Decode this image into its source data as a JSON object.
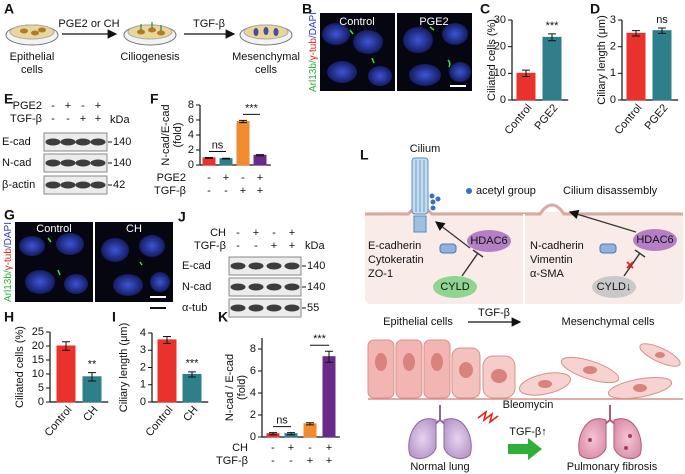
{
  "panel_a": {
    "letter": "A",
    "start": [
      "Epithelial",
      "cells"
    ],
    "step1": "PGE2 or CH",
    "middle": "Ciliogenesis",
    "step2": "TGF-β",
    "end": [
      "Mesenchymal",
      "cells"
    ]
  },
  "panel_b": {
    "letter": "B",
    "stain": [
      "Arl13b/",
      "γ-tub",
      "/DAPI"
    ],
    "images": [
      "Control",
      "PGE2"
    ]
  },
  "panel_e": {
    "letter": "E",
    "unit": "kDa",
    "rows": [
      {
        "name": "PGE2",
        "signs": [
          "-",
          "+",
          "-",
          "+"
        ]
      },
      {
        "name": "TGF-β",
        "signs": [
          "-",
          "-",
          "+",
          "+"
        ]
      }
    ],
    "bands": [
      {
        "name": "E-cad",
        "kda": 140
      },
      {
        "name": "N-cad",
        "kda": 140
      },
      {
        "name": "β-actin",
        "kda": 42
      }
    ]
  },
  "panel_g": {
    "letter": "G",
    "stain": [
      "Arl13b/",
      "γ-tub",
      "/DAPI"
    ],
    "images": [
      "Control",
      "CH"
    ]
  },
  "panel_j": {
    "letter": "J",
    "unit": "kDa",
    "rows": [
      {
        "name": "CH",
        "signs": [
          "-",
          "+",
          "-",
          "+"
        ]
      },
      {
        "name": "TGF-β",
        "signs": [
          "-",
          "-",
          "+",
          "+"
        ]
      }
    ],
    "bands": [
      {
        "name": "E-cad",
        "kda": 140
      },
      {
        "name": "N-cad",
        "kda": 140
      },
      {
        "name": "α-tub",
        "kda": 55
      }
    ]
  },
  "panel_l": {
    "letter": "L",
    "cilium": "Cilium",
    "acetyl": "acetyl group",
    "disassembly": "Cilium disassembly",
    "hdac_left": "HDAC6",
    "hdac_right": "HDAC6",
    "cyld_left": "CYLD",
    "cyld_right": "CYLD↓",
    "epithelial_markers": [
      "E-cadherin",
      "Cytokeratin",
      "ZO-1"
    ],
    "mesenchymal_markers": [
      "N-cadherin",
      "Vimentin",
      "α-SMA"
    ],
    "epithelial": "Epithelial cells",
    "tgf": "TGF-β",
    "mesenchymal": "Mesenchymal cells",
    "bleomycin": "Bleomycin",
    "tgf_up": "TGF-β↑",
    "normal": "Normal lung",
    "fibrosis": "Pulmonary fibrosis"
  },
  "chart_data": [
    {
      "type": "bar",
      "panel": "C",
      "ylabel": "Ciliated cells (%)",
      "categories": [
        "Control",
        "PGE2"
      ],
      "values": [
        10,
        23.5
      ],
      "errors": [
        1.2,
        1.3
      ],
      "colors": [
        "#e8322b",
        "#2f7f8a"
      ],
      "ylim": [
        0,
        30
      ],
      "yticks": [
        0,
        10,
        20,
        30
      ],
      "annotations": [
        "***"
      ]
    },
    {
      "type": "bar",
      "panel": "D",
      "ylabel": "Ciliary length (μm)",
      "categories": [
        "Control",
        "PGE2"
      ],
      "values": [
        2.5,
        2.6
      ],
      "errors": [
        0.1,
        0.1
      ],
      "colors": [
        "#e8322b",
        "#2f7f8a"
      ],
      "ylim": [
        0,
        3
      ],
      "yticks": [
        0,
        1,
        2,
        3
      ],
      "annotations": [
        "ns"
      ]
    },
    {
      "type": "bar",
      "panel": "F",
      "ylabel": [
        "N-cad/E-cad",
        "(fold)"
      ],
      "rows": [
        {
          "name": "PGE2",
          "signs": [
            "-",
            "+",
            "-",
            "+"
          ]
        },
        {
          "name": "TGF-β",
          "signs": [
            "-",
            "-",
            "+",
            "+"
          ]
        }
      ],
      "values": [
        0.95,
        0.85,
        5.8,
        1.3
      ],
      "errors": [
        0.05,
        0.05,
        0.15,
        0.08
      ],
      "colors": [
        "#e8322b",
        "#2f7f8a",
        "#f28a2e",
        "#6a2a8a"
      ],
      "ylim": [
        0,
        8
      ],
      "yticks": [
        0,
        2,
        4,
        6,
        8
      ],
      "annotations": [
        "ns",
        "***"
      ]
    },
    {
      "type": "bar",
      "panel": "H",
      "ylabel": "Ciliated cells (%)",
      "categories": [
        "Control",
        "CH"
      ],
      "values": [
        20,
        9
      ],
      "errors": [
        1.5,
        1.5
      ],
      "colors": [
        "#e8322b",
        "#2f7f8a"
      ],
      "ylim": [
        0,
        25
      ],
      "yticks": [
        0,
        5,
        10,
        15,
        20,
        25
      ],
      "annotations": [
        "**"
      ]
    },
    {
      "type": "bar",
      "panel": "I",
      "ylabel": "Ciliary length (μm)",
      "categories": [
        "Control",
        "CH"
      ],
      "values": [
        3.6,
        1.6
      ],
      "errors": [
        0.2,
        0.15
      ],
      "colors": [
        "#e8322b",
        "#2f7f8a"
      ],
      "ylim": [
        0,
        4
      ],
      "yticks": [
        0,
        1,
        2,
        3,
        4
      ],
      "annotations": [
        "***"
      ]
    },
    {
      "type": "bar",
      "panel": "K",
      "ylabel": [
        "N-cad / E-cad",
        "(fold)"
      ],
      "rows": [
        {
          "name": "CH",
          "signs": [
            "-",
            "+",
            "-",
            "+"
          ]
        },
        {
          "name": "TGF-β",
          "signs": [
            "-",
            "-",
            "+",
            "+"
          ]
        }
      ],
      "values": [
        0.3,
        0.3,
        1.2,
        7.3
      ],
      "errors": [
        0.1,
        0.1,
        0.1,
        0.5
      ],
      "colors": [
        "#e8322b",
        "#2f7f8a",
        "#f28a2e",
        "#6a2a8a"
      ],
      "ylim": [
        0,
        9
      ],
      "yticks": [
        0,
        2,
        4,
        6,
        8
      ],
      "annotations": [
        "ns",
        "***"
      ]
    }
  ]
}
